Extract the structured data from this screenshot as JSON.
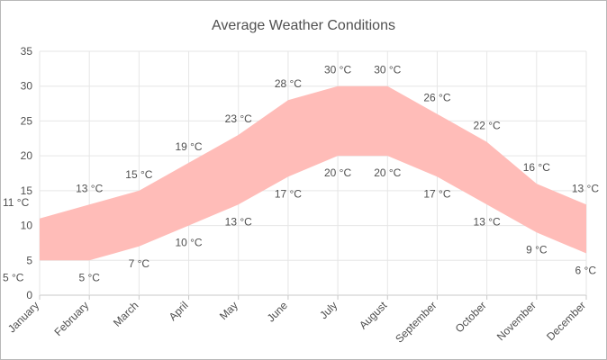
{
  "chart_data": {
    "type": "area",
    "subtype": "range-area",
    "title": "Average Weather Conditions",
    "xlabel": "",
    "ylabel": "",
    "categories": [
      "January",
      "February",
      "March",
      "April",
      "May",
      "June",
      "July",
      "August",
      "September",
      "October",
      "November",
      "December"
    ],
    "series": [
      {
        "high": [
          11,
          13,
          15,
          19,
          23,
          28,
          30,
          30,
          26,
          22,
          16,
          13
        ],
        "low": [
          5,
          5,
          7,
          10,
          13,
          17,
          20,
          20,
          17,
          13,
          9,
          6
        ],
        "color": "#ffbcb8"
      }
    ],
    "label_suffix": " °C",
    "ylim": [
      0,
      35
    ],
    "yticks": [
      0,
      5,
      10,
      15,
      20,
      25,
      30,
      35
    ],
    "grid": true,
    "legend": "none"
  }
}
